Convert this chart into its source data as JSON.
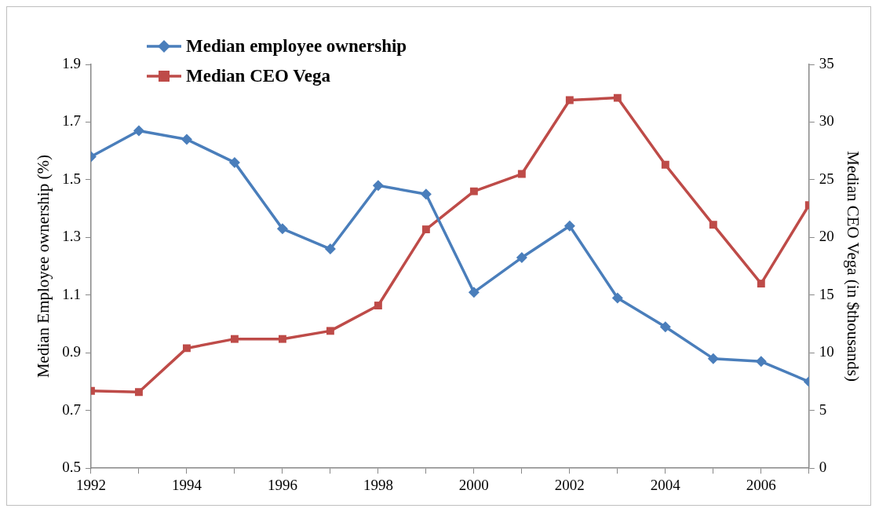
{
  "chart_data": {
    "type": "line",
    "ylabel": "Median Employee ownership (%)",
    "y2label": "Median CEO Vega (in $thousands)",
    "x": [
      1992,
      1993,
      1994,
      1995,
      1996,
      1997,
      1998,
      1999,
      2000,
      2001,
      2002,
      2003,
      2004,
      2005,
      2006,
      2007
    ],
    "xlim": [
      1992,
      2007
    ],
    "xticks": [
      1992,
      {
        "value": 1993,
        "label": null
      },
      1994,
      {
        "value": 1995,
        "label": null
      },
      1996,
      {
        "value": 1997,
        "label": null
      },
      1998,
      {
        "value": 1999,
        "label": null
      },
      2000,
      {
        "value": 2001,
        "label": null
      },
      2002,
      {
        "value": 2003,
        "label": null
      },
      2004,
      {
        "value": 2005,
        "label": null
      },
      2006,
      {
        "value": 2007,
        "label": null
      }
    ],
    "ylim": [
      0.5,
      1.9
    ],
    "yticks": [
      0.5,
      0.7,
      0.9,
      1.1,
      1.3,
      1.5,
      1.7,
      1.9
    ],
    "y2lim": [
      0,
      35
    ],
    "y2ticks": [
      0,
      5,
      10,
      15,
      20,
      25,
      30,
      35
    ],
    "series": [
      {
        "name": "Median employee ownership",
        "color": "#4a7ebb",
        "marker": "diamond",
        "values": [
          1.58,
          1.67,
          1.64,
          1.56,
          1.33,
          1.26,
          1.48,
          1.45,
          1.11,
          1.23,
          1.34,
          1.09,
          0.99,
          0.88,
          0.87,
          0.8
        ]
      },
      {
        "name": "Median CEO Vega",
        "color": "#be4b48",
        "marker": "square",
        "axis": "y2",
        "values": [
          6.7,
          6.6,
          10.4,
          11.2,
          11.2,
          11.9,
          14.1,
          20.7,
          24.0,
          25.5,
          31.9,
          32.1,
          26.3,
          21.1,
          16.0,
          22.8
        ]
      }
    ],
    "grid": false,
    "legend": "top left",
    "line_style": "solid"
  }
}
